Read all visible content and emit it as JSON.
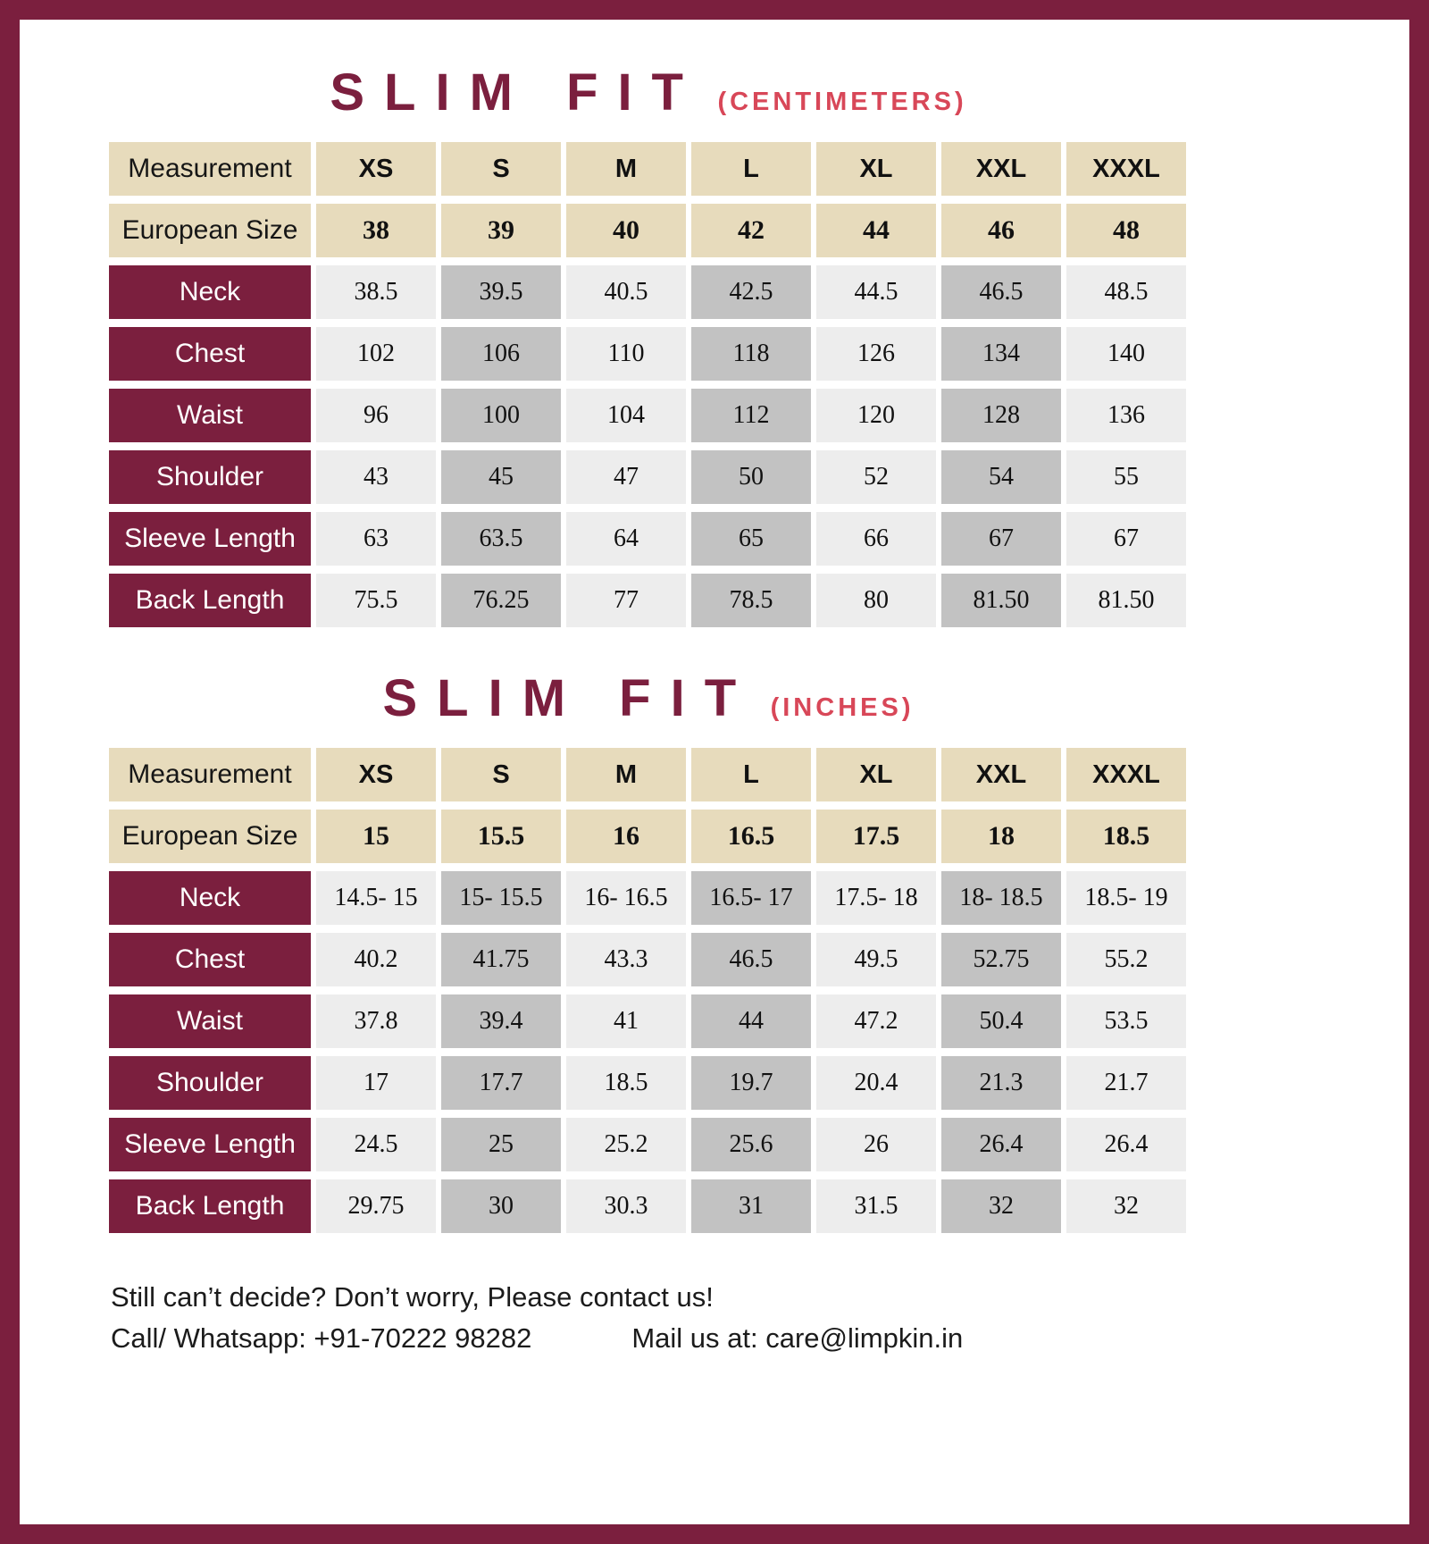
{
  "colors": {
    "maroon": "#7b1f3e",
    "accent": "#d84758",
    "beige": "#e7dbbc",
    "cellLight": "#ededed",
    "cellDark": "#c2c2c2"
  },
  "chart_data": [
    {
      "type": "table",
      "title": "SLIM FIT",
      "unit": "(CENTIMETERS)",
      "columns_label": "Measurement",
      "sizes": [
        "XS",
        "S",
        "M",
        "L",
        "XL",
        "XXL",
        "XXXL"
      ],
      "european_label": "European Size",
      "european_sizes": [
        "38",
        "39",
        "40",
        "42",
        "44",
        "46",
        "48"
      ],
      "rows": [
        {
          "label": "Neck",
          "values": [
            "38.5",
            "39.5",
            "40.5",
            "42.5",
            "44.5",
            "46.5",
            "48.5"
          ]
        },
        {
          "label": "Chest",
          "values": [
            "102",
            "106",
            "110",
            "118",
            "126",
            "134",
            "140"
          ]
        },
        {
          "label": "Waist",
          "values": [
            "96",
            "100",
            "104",
            "112",
            "120",
            "128",
            "136"
          ]
        },
        {
          "label": "Shoulder",
          "values": [
            "43",
            "45",
            "47",
            "50",
            "52",
            "54",
            "55"
          ]
        },
        {
          "label": "Sleeve Length",
          "values": [
            "63",
            "63.5",
            "64",
            "65",
            "66",
            "67",
            "67"
          ]
        },
        {
          "label": "Back Length",
          "values": [
            "75.5",
            "76.25",
            "77",
            "78.5",
            "80",
            "81.50",
            "81.50"
          ]
        }
      ]
    },
    {
      "type": "table",
      "title": "SLIM FIT",
      "unit": "(INCHES)",
      "columns_label": "Measurement",
      "sizes": [
        "XS",
        "S",
        "M",
        "L",
        "XL",
        "XXL",
        "XXXL"
      ],
      "european_label": "European Size",
      "european_sizes": [
        "15",
        "15.5",
        "16",
        "16.5",
        "17.5",
        "18",
        "18.5"
      ],
      "rows": [
        {
          "label": "Neck",
          "values": [
            "14.5- 15",
            "15- 15.5",
            "16- 16.5",
            "16.5- 17",
            "17.5- 18",
            "18- 18.5",
            "18.5- 19"
          ]
        },
        {
          "label": "Chest",
          "values": [
            "40.2",
            "41.75",
            "43.3",
            "46.5",
            "49.5",
            "52.75",
            "55.2"
          ]
        },
        {
          "label": "Waist",
          "values": [
            "37.8",
            "39.4",
            "41",
            "44",
            "47.2",
            "50.4",
            "53.5"
          ]
        },
        {
          "label": "Shoulder",
          "values": [
            "17",
            "17.7",
            "18.5",
            "19.7",
            "20.4",
            "21.3",
            "21.7"
          ]
        },
        {
          "label": "Sleeve Length",
          "values": [
            "24.5",
            "25",
            "25.2",
            "25.6",
            "26",
            "26.4",
            "26.4"
          ]
        },
        {
          "label": "Back Length",
          "values": [
            "29.75",
            "30",
            "30.3",
            "31",
            "31.5",
            "32",
            "32"
          ]
        }
      ]
    }
  ],
  "footer": {
    "line1": "Still can’t decide? Don’t worry, Please contact us!",
    "call": "Call/ Whatsapp: +91-70222 98282",
    "mail": "Mail us at: care@limpkin.in"
  }
}
